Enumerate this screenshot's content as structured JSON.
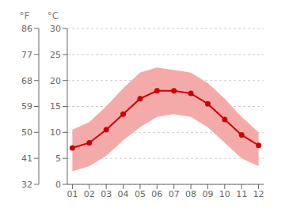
{
  "chart_data": {
    "type": "line",
    "x": [
      1,
      2,
      3,
      4,
      5,
      6,
      7,
      8,
      9,
      10,
      11,
      12
    ],
    "xlim": [
      0.7,
      12.3
    ],
    "xticks": [
      {
        "value": 1,
        "label": "01"
      },
      {
        "value": 2,
        "label": "02"
      },
      {
        "value": 3,
        "label": "03"
      },
      {
        "value": 4,
        "label": "04"
      },
      {
        "value": 5,
        "label": "05"
      },
      {
        "value": 6,
        "label": "06"
      },
      {
        "value": 7,
        "label": "07"
      },
      {
        "value": 8,
        "label": "08"
      },
      {
        "value": 9,
        "label": "09"
      },
      {
        "value": 10,
        "label": "10"
      },
      {
        "value": 11,
        "label": "11"
      },
      {
        "value": 12,
        "label": "12"
      }
    ],
    "series": [
      {
        "values": [
          7.0,
          8.0,
          10.5,
          13.5,
          16.5,
          18.0,
          18.0,
          17.5,
          15.5,
          12.5,
          9.5,
          7.5
        ],
        "color": "#cc0000",
        "marker": "o"
      }
    ],
    "band": {
      "lower": [
        2.5,
        3.5,
        5.5,
        8.5,
        11.0,
        13.0,
        13.5,
        13.0,
        11.0,
        8.0,
        5.0,
        3.5
      ],
      "upper": [
        10.5,
        12.0,
        15.0,
        18.5,
        21.5,
        22.5,
        22.0,
        21.5,
        19.5,
        16.5,
        13.0,
        10.0
      ],
      "color": "#f5aaaa"
    },
    "ylim": [
      0,
      30
    ],
    "yticks": [
      0,
      5,
      10,
      15,
      20,
      25,
      30
    ],
    "y_label": "°C",
    "y2lim": [
      32,
      86
    ],
    "y2ticks": [
      32,
      41,
      50,
      59,
      68,
      77,
      86
    ],
    "y2_label": "°F",
    "grid": true
  }
}
